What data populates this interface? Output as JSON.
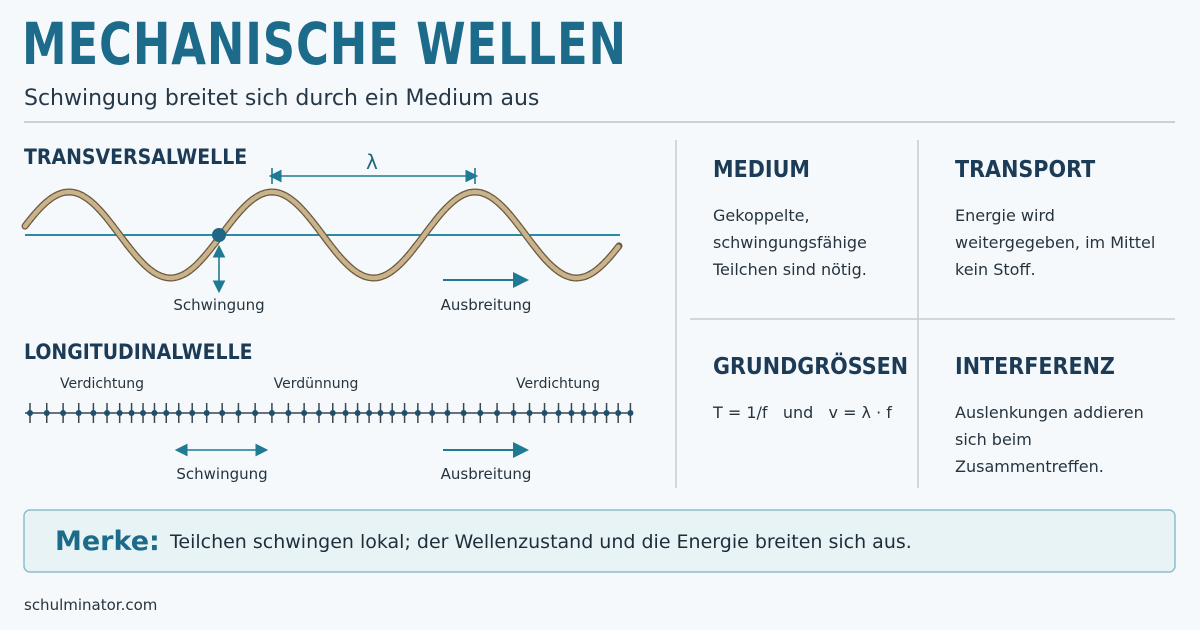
{
  "header": {
    "title": "MECHANISCHE WELLEN",
    "subtitle": "Schwingung breitet sich durch ein Medium aus"
  },
  "transversal": {
    "title": "TRANSVERSALWELLE",
    "wavelength": "λ",
    "oscillation": "Schwingung",
    "propagation": "Ausbreitung"
  },
  "longitudinal": {
    "title": "LONGITUDINALWELLE",
    "zones": [
      "Verdichtung",
      "Verdünnung",
      "Verdichtung"
    ],
    "oscillation": "Schwingung",
    "propagation": "Ausbreitung"
  },
  "cards": [
    {
      "title": "MEDIUM",
      "text": "Gekoppelte, schwingungsfähige Teilchen sind nötig."
    },
    {
      "title": "TRANSPORT",
      "text": "Energie wird weitergegeben, im Mittel kein Stoff."
    },
    {
      "title": "GRUNDGRÖSSEN",
      "text": "T = 1/f   und   v = λ · f"
    },
    {
      "title": "INTERFERENZ",
      "text": "Auslenkungen addieren sich beim Zusammentreffen."
    }
  ],
  "note": {
    "label": "Merke:",
    "text": "Teilchen schwingen lokal; der Wellenzustand und die Energie breiten sich aus."
  },
  "footer": "schulminator.com"
}
